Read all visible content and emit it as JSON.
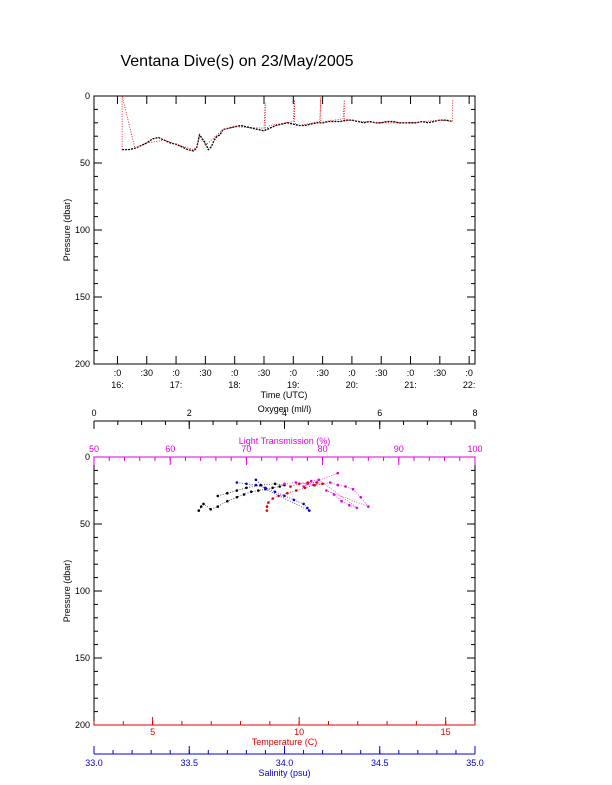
{
  "title": "Ventana Dive(s) on 23/May/2005",
  "colors": {
    "black": "#000000",
    "red": "#e00000",
    "blue": "#0000dd",
    "magenta": "#e000e0"
  },
  "chart_data": [
    {
      "type": "line",
      "xlabel": "Time (UTC)",
      "ylabel": "Pressure (dbar)",
      "x_unit": "hour UTC",
      "xlim": [
        15.6,
        22.1
      ],
      "ylim": [
        0,
        200
      ],
      "y_inverted": true,
      "y_ticks": [
        "0",
        "50",
        "100",
        "150",
        "200"
      ],
      "x_ticks": [
        {
          "label": ":0\n16:",
          "value": 16.0
        },
        {
          "label": ":30",
          "value": 16.5
        },
        {
          "label": ":0\n17:",
          "value": 17.0
        },
        {
          "label": ":30",
          "value": 17.5
        },
        {
          "label": ":0\n18:",
          "value": 18.0
        },
        {
          "label": ":30",
          "value": 18.5
        },
        {
          "label": ":0\n19:",
          "value": 19.0
        },
        {
          "label": ":30",
          "value": 19.5
        },
        {
          "label": ":0\n20:",
          "value": 20.0
        },
        {
          "label": ":30",
          "value": 20.5
        },
        {
          "label": ":0\n21:",
          "value": 21.0
        },
        {
          "label": ":30",
          "value": 21.5
        },
        {
          "label": ":0\n22:",
          "value": 22.0
        }
      ],
      "series": [
        {
          "color": "#000000",
          "x": [
            16.08,
            16.1,
            16.2,
            16.3,
            16.4,
            16.5,
            16.6,
            16.7,
            16.8,
            16.9,
            17.0,
            17.1,
            17.2,
            17.3,
            17.35,
            17.4,
            17.45,
            17.5,
            17.55,
            17.6,
            17.65,
            17.7,
            17.75,
            17.8,
            17.9,
            18.0,
            18.1,
            18.2,
            18.3,
            18.4,
            18.5,
            18.6,
            18.7,
            18.8,
            18.9,
            19.0,
            19.1,
            19.2,
            19.3,
            19.4,
            19.5,
            19.6,
            19.7,
            19.8,
            19.9,
            20.0,
            20.1,
            20.2,
            20.3,
            20.4,
            20.5,
            20.6,
            20.7,
            20.8,
            20.9,
            21.0,
            21.1,
            21.2,
            21.3,
            21.4,
            21.5,
            21.6,
            21.72
          ],
          "y": [
            40,
            40,
            40,
            39,
            37,
            35,
            32,
            31,
            33,
            35,
            36,
            38,
            40,
            41,
            39,
            29,
            32,
            35,
            40,
            38,
            33,
            30,
            29,
            25,
            24,
            23,
            22,
            23,
            24,
            25,
            26,
            24,
            22,
            21,
            20,
            21,
            22,
            22,
            21,
            20,
            20,
            19,
            19,
            19,
            18,
            18,
            19,
            20,
            19,
            20,
            20,
            19,
            19,
            20,
            20,
            20,
            20,
            19,
            20,
            19,
            18,
            18,
            19
          ]
        },
        {
          "color": "#e00000",
          "x": [
            16.08,
            16.08,
            16.3,
            16.5,
            16.8,
            17.0,
            17.3,
            17.35,
            17.4,
            17.45,
            17.5,
            17.6,
            17.8,
            18.0,
            18.5,
            18.52,
            18.52,
            18.6,
            19.0,
            19.02,
            19.02,
            19.1,
            19.45,
            19.47,
            19.47,
            19.55,
            19.85,
            19.87,
            19.87,
            19.95,
            20.4,
            21.0,
            21.5,
            21.72,
            21.72
          ],
          "y": [
            40,
            0,
            39,
            35,
            33,
            36,
            40,
            38,
            29,
            33,
            37,
            33,
            25,
            23,
            24,
            5,
            25,
            22,
            19,
            3,
            20,
            22,
            19,
            1,
            20,
            19,
            17,
            3,
            19,
            18,
            20,
            20,
            18,
            19,
            3
          ]
        }
      ]
    },
    {
      "type": "scatter",
      "ylabel": "Pressure (dbar)",
      "ylim": [
        0,
        200
      ],
      "y_inverted": true,
      "y_ticks": [
        "0",
        "50",
        "100",
        "150",
        "200"
      ],
      "axes": [
        {
          "label": "Oxygen (ml/l)",
          "position": "top",
          "color": "#000000",
          "range": [
            0,
            8
          ],
          "ticks": [
            "0",
            "2",
            "4",
            "6",
            "8"
          ]
        },
        {
          "label": "Light Transmission (%)",
          "position": "top-inner",
          "color": "#e000e0",
          "range": [
            50,
            100
          ],
          "ticks": [
            "50",
            "60",
            "70",
            "80",
            "90",
            "100"
          ]
        },
        {
          "label": "Temperature (C)",
          "position": "bottom",
          "color": "#e00000",
          "range": [
            3,
            16
          ],
          "ticks": [
            "5",
            "10",
            "15"
          ]
        },
        {
          "label": "Salinity (psu)",
          "position": "bottom-outer",
          "color": "#0000dd",
          "range": [
            33.0,
            35.0
          ],
          "ticks": [
            "33.0",
            "33.5",
            "34.0",
            "34.5",
            "35.0"
          ]
        }
      ],
      "series": [
        {
          "variable": "oxygen",
          "color": "#000000",
          "axis": 0,
          "x": [
            2.2,
            2.25,
            2.3,
            2.45,
            2.6,
            2.8,
            3.0,
            3.15,
            3.3,
            3.45,
            3.6,
            3.75,
            3.9,
            4.0,
            3.8,
            3.5,
            3.2,
            3.0,
            2.8,
            2.6
          ],
          "y": [
            40,
            37,
            35,
            39,
            37,
            33,
            30,
            28,
            26,
            25,
            24,
            23,
            22,
            21,
            20,
            21,
            23,
            25,
            27,
            29
          ]
        },
        {
          "variable": "light_transmission",
          "color": "#e000e0",
          "axis": 1,
          "x": [
            75.0,
            76.5,
            78.0,
            79.0,
            80.0,
            81.0,
            82.0,
            83.0,
            84.0,
            85.0,
            86.0,
            80.5,
            81.5,
            82.5,
            83.5,
            84.5,
            79.5,
            78.5,
            77.5,
            82.0
          ],
          "y": [
            20,
            19,
            20,
            21,
            20,
            19,
            21,
            22,
            24,
            30,
            37,
            25,
            28,
            33,
            36,
            38,
            17,
            18,
            22,
            12
          ]
        },
        {
          "variable": "temperature",
          "color": "#e00000",
          "axis": 2,
          "x": [
            8.9,
            8.9,
            8.95,
            9.1,
            9.3,
            9.6,
            9.9,
            10.2,
            10.5,
            10.8,
            10.6,
            10.3,
            10.0,
            9.7
          ],
          "y": [
            40,
            37,
            34,
            31,
            29,
            27,
            25,
            23,
            21,
            20,
            19,
            19,
            20,
            22
          ]
        },
        {
          "variable": "salinity",
          "color": "#0000dd",
          "axis": 3,
          "x": [
            33.75,
            33.8,
            33.85,
            33.9,
            33.95,
            34.0,
            34.05,
            34.1,
            34.12,
            34.13,
            33.9,
            33.85
          ],
          "y": [
            19,
            20,
            21,
            23,
            26,
            29,
            32,
            35,
            38,
            40,
            24,
            17
          ]
        }
      ]
    }
  ]
}
